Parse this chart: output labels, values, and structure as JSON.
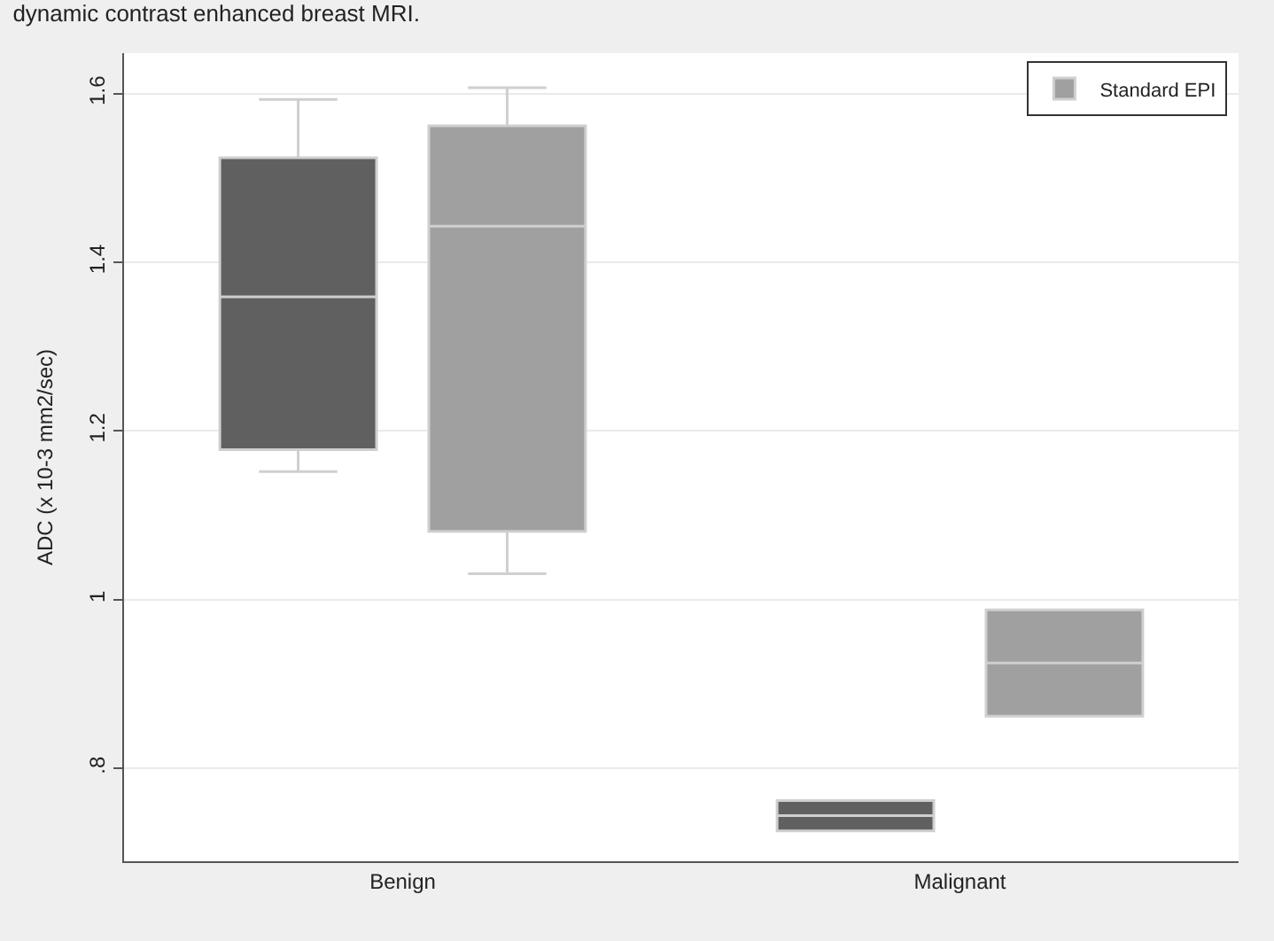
{
  "chart_data": {
    "type": "box",
    "title": "dynamic contrast enhanced breast MRI.",
    "ylabel": "ADC (x 10-3 mm2/sec)",
    "categories": [
      "Benign",
      "Malignant"
    ],
    "series": [
      {
        "color": "#606060",
        "boxes": [
          {
            "low": 1.152,
            "q1": 1.178,
            "median": 1.359,
            "q3": 1.524,
            "high": 1.593
          },
          {
            "low": 0.726,
            "q1": 0.726,
            "median": 0.744,
            "q3": 0.762,
            "high": 0.762
          }
        ]
      },
      {
        "name": "Standard EPI",
        "color": "#a0a0a0",
        "boxes": [
          {
            "low": 1.031,
            "q1": 1.081,
            "median": 1.443,
            "q3": 1.562,
            "high": 1.607
          },
          {
            "low": 0.862,
            "q1": 0.862,
            "median": 0.925,
            "q3": 0.988,
            "high": 0.988
          }
        ]
      }
    ],
    "ylim": [
      0.69,
      1.648
    ],
    "yticks": [
      {
        "value": 0.8,
        "label": ".8"
      },
      1,
      1.2,
      1.4,
      1.6
    ],
    "grid": "y",
    "legend": "top right"
  }
}
